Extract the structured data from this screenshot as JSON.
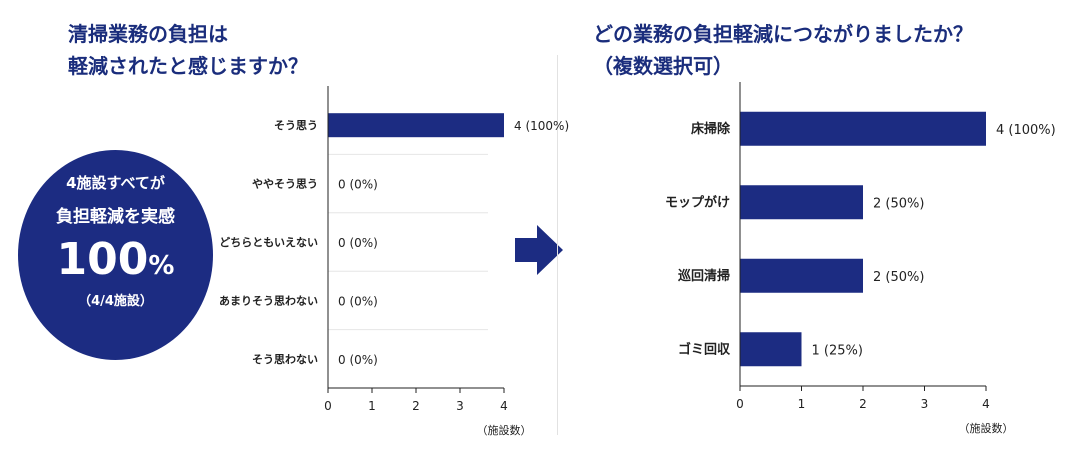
{
  "left_title": [
    "清掃業務の負担は",
    "軽減されたと感じますか？"
  ],
  "right_title": [
    "どの業務の負担軽減につながりましたか？",
    "（複数選択可）"
  ],
  "badge": {
    "line1": "4施設すべてが",
    "line2": "負担軽減を実感",
    "big_value": "100",
    "big_unit": "%",
    "sub": "（4/4施設）"
  },
  "colors": {
    "bar": "#1c2c82",
    "title": "#1a2d7c",
    "badge": "#1c2c82"
  },
  "chart_data": [
    {
      "type": "bar",
      "orientation": "horizontal",
      "categories": [
        "そう思う",
        "ややそう思う",
        "どちらともいえない",
        "あまりそう思わない",
        "そう思わない"
      ],
      "values": [
        4,
        0,
        0,
        0,
        0
      ],
      "data_labels": [
        "4 (100%)",
        "0 (0%)",
        "0 (0%)",
        "0 (0%)",
        "0 (0%)"
      ],
      "xlim": [
        0,
        4
      ],
      "ticks": [
        0,
        1,
        2,
        3,
        4
      ],
      "xlabel": "（施設数）",
      "grid": "horizontal separators"
    },
    {
      "type": "bar",
      "orientation": "horizontal",
      "categories": [
        "床掃除",
        "モップがけ",
        "巡回清掃",
        "ゴミ回収"
      ],
      "values": [
        4,
        2,
        2,
        1
      ],
      "data_labels": [
        "4 (100%)",
        "2 (50%)",
        "2 (50%)",
        "1 (25%)"
      ],
      "xlim": [
        0,
        4
      ],
      "ticks": [
        0,
        1,
        2,
        3,
        4
      ],
      "xlabel": "（施設数）",
      "grid": "off"
    }
  ]
}
